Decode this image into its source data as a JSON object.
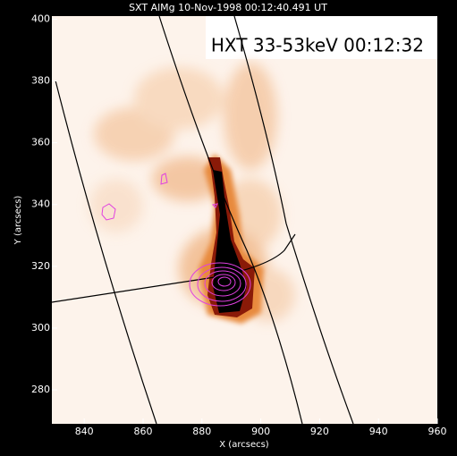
{
  "chart_data": {
    "type": "image",
    "title": "SXT AlMg 10-Nov-1998 00:12:40.491 UT",
    "annotation": "HXT 33-53keV 00:12:32",
    "x_label": "X (arcsecs)",
    "y_label": "Y (arcsecs)",
    "xlim": [
      829,
      960
    ],
    "xticks": [
      840,
      860,
      880,
      900,
      920,
      940,
      960
    ],
    "ylim": [
      269,
      401
    ],
    "yticks": [
      280,
      300,
      320,
      340,
      360,
      380,
      400
    ]
  }
}
